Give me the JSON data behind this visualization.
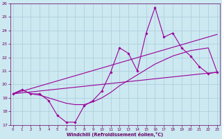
{
  "x": [
    0,
    1,
    2,
    3,
    4,
    5,
    6,
    7,
    8,
    9,
    10,
    11,
    12,
    13,
    14,
    15,
    16,
    17,
    18,
    19,
    20,
    21,
    22,
    23
  ],
  "line_main": [
    19.3,
    19.6,
    19.3,
    19.3,
    18.8,
    17.7,
    17.2,
    17.2,
    18.4,
    18.8,
    19.5,
    20.9,
    22.7,
    22.3,
    21.0,
    23.8,
    25.7,
    23.5,
    23.8,
    22.7,
    22.1,
    21.3,
    20.8,
    20.9
  ],
  "line_avg": [
    19.3,
    19.6,
    19.3,
    19.2,
    19.0,
    18.8,
    18.6,
    18.5,
    18.5,
    18.7,
    19.0,
    19.4,
    19.9,
    20.3,
    20.7,
    21.1,
    21.5,
    21.8,
    22.1,
    22.3,
    22.5,
    22.6,
    22.7,
    20.9
  ],
  "trend1_x": [
    0,
    23
  ],
  "trend1_y": [
    19.3,
    23.7
  ],
  "trend2_x": [
    0,
    23
  ],
  "trend2_y": [
    19.3,
    20.9
  ],
  "color": "#990099",
  "bg_color": "#cce8f0",
  "grid_color": "#aaccdd",
  "xlim": [
    0,
    23
  ],
  "ylim": [
    17.0,
    26.0
  ],
  "yticks": [
    17,
    18,
    19,
    20,
    21,
    22,
    23,
    24,
    25,
    26
  ],
  "xticks": [
    0,
    1,
    2,
    3,
    4,
    5,
    6,
    7,
    8,
    9,
    10,
    11,
    12,
    13,
    14,
    15,
    16,
    17,
    18,
    19,
    20,
    21,
    22,
    23
  ],
  "xlabel": "Windchill (Refroidissement éolien,°C)",
  "font_color": "#660066"
}
